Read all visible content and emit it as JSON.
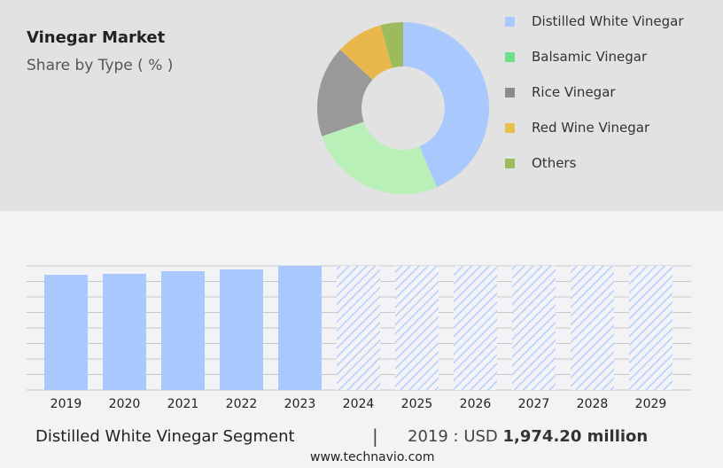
{
  "header": {
    "title": "Vinegar Market",
    "subtitle": "Share by Type ( % )"
  },
  "chart_data": [
    {
      "type": "pie",
      "donut": true,
      "labels": [
        "Distilled White Vinegar",
        "Balsamic Vinegar",
        "Rice Vinegar",
        "Red Wine Vinegar",
        "Others"
      ],
      "values": [
        43.6,
        26.1,
        17.2,
        8.9,
        4.2
      ],
      "slice_colors": [
        "#a8c8fe",
        "#b8f0b8",
        "#999999",
        "#e8b84c",
        "#9cbb5c"
      ],
      "legend_colors": [
        "#a8c8fe",
        "#6ee08a",
        "#8c8c8c",
        "#e8c04c",
        "#9cbb5c"
      ],
      "legend": "right"
    },
    {
      "type": "bar",
      "categories": [
        "2019",
        "2020",
        "2021",
        "2022",
        "2023",
        "2024",
        "2025",
        "2026",
        "2027",
        "2028",
        "2029"
      ],
      "values": [
        1974.2,
        1990,
        2035,
        2065,
        2126,
        null,
        null,
        null,
        null,
        null,
        null
      ],
      "forecast": [
        "2024",
        "2025",
        "2026",
        "2027",
        "2028",
        "2029"
      ],
      "ylim": [
        0,
        2126
      ],
      "grid": true,
      "color": "#a8c8fe"
    }
  ],
  "footer": {
    "segment": "Distilled White Vinegar Segment",
    "separator": "|",
    "year_label": "2019 : USD",
    "value": "1,974.20 million",
    "site": "www.technavio.com"
  }
}
